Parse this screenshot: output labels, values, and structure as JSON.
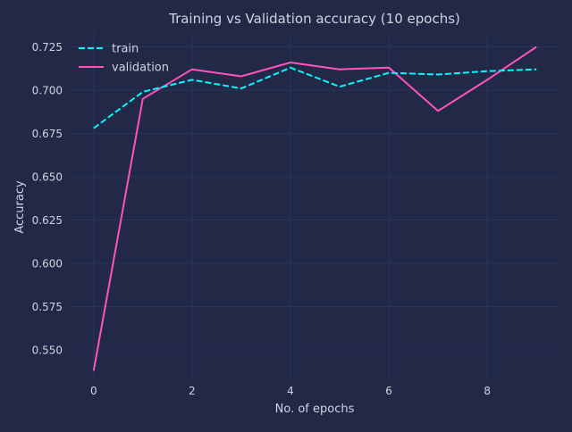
{
  "chart_data": {
    "type": "line",
    "title": "Training vs Validation accuracy (10 epochs)",
    "xlabel": "No. of epochs",
    "ylabel": "Accuracy",
    "x": [
      0,
      1,
      2,
      3,
      4,
      5,
      6,
      7,
      8,
      9
    ],
    "xlim": [
      -0.45,
      9.45
    ],
    "ylim": [
      0.5335,
      0.7335
    ],
    "xticks": [
      0,
      2,
      4,
      6,
      8
    ],
    "yticks": [
      0.55,
      0.575,
      0.6,
      0.625,
      0.65,
      0.675,
      0.7,
      0.725
    ],
    "xtick_labels": [
      "0",
      "2",
      "4",
      "6",
      "8"
    ],
    "ytick_labels": [
      "0.550",
      "0.575",
      "0.600",
      "0.625",
      "0.650",
      "0.675",
      "0.700",
      "0.725"
    ],
    "grid": true,
    "legend_position": "top-left",
    "series": [
      {
        "name": "train",
        "style": "dashed",
        "color": "#08F7FE",
        "values": [
          0.678,
          0.699,
          0.706,
          0.701,
          0.713,
          0.702,
          0.71,
          0.709,
          0.711,
          0.712
        ]
      },
      {
        "name": "validation",
        "style": "solid",
        "color": "#FE53BB",
        "values": [
          0.538,
          0.695,
          0.712,
          0.708,
          0.716,
          0.712,
          0.713,
          0.688,
          0.706,
          0.725
        ]
      }
    ]
  },
  "colors": {
    "background": "#212946",
    "grid": "#2A3459",
    "text": "#D0D4E0"
  }
}
